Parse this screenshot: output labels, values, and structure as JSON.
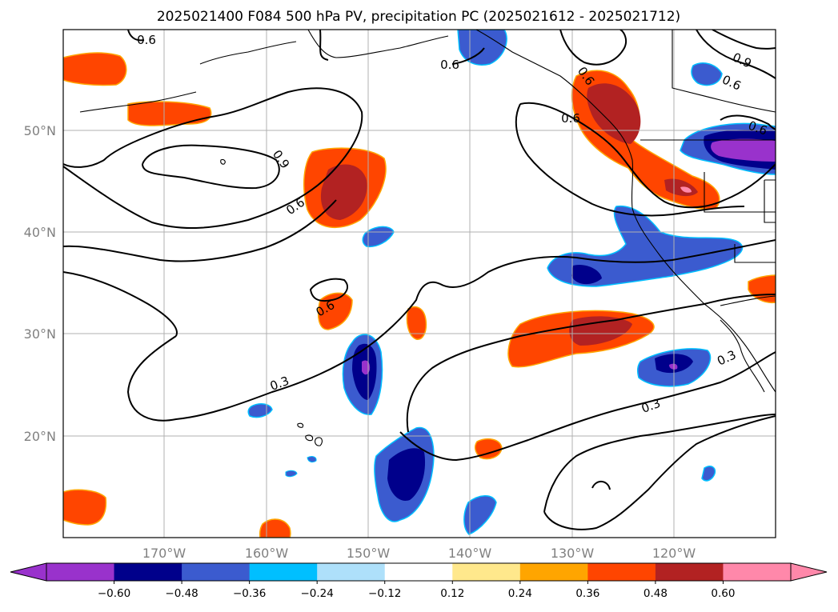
{
  "title": "2025021400 F084 500 hPa PV, precipitation PC (2025021612 - 2025021712)",
  "map": {
    "lat_labels": [
      "50°N",
      "40°N",
      "30°N",
      "20°N"
    ],
    "lon_labels": [
      "170°W",
      "160°W",
      "150°W",
      "140°W",
      "130°W",
      "120°W"
    ],
    "contour_labels": [
      "0.6",
      "0.6",
      "0.6",
      "0.9",
      "0.6",
      "0.6",
      "0.9",
      "0.6",
      "0.6",
      "0.3",
      "0.3",
      "0.3",
      "0.6"
    ]
  },
  "colorbar": {
    "ticks": [
      "−0.60",
      "−0.48",
      "−0.36",
      "−0.24",
      "−0.12",
      "0.12",
      "0.24",
      "0.36",
      "0.48",
      "0.60"
    ],
    "colors": [
      "#9932cc",
      "#00008b",
      "#3b5bcf",
      "#00bfff",
      "#aee0fa",
      "#ffffff",
      "#ffe88c",
      "#ffa500",
      "#ff4500",
      "#b22222",
      "#ff88aa"
    ]
  }
}
